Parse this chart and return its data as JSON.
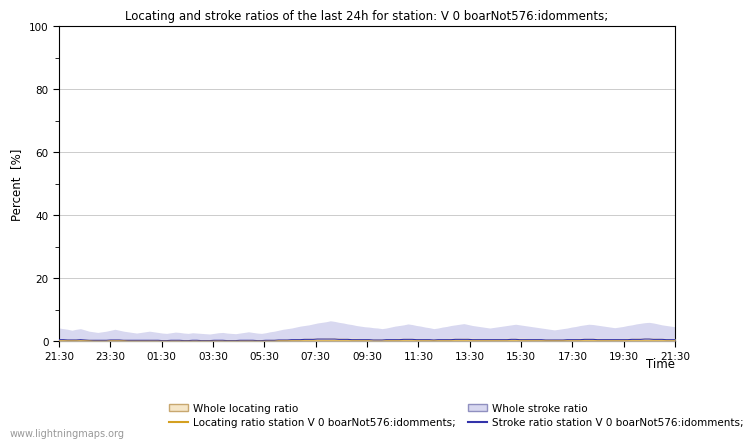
{
  "title": "Locating and stroke ratios of the last 24h for station: V 0 boarNot576:idomments;",
  "xlabel": "Time",
  "ylabel": "Percent  [%]",
  "xlim_labels": [
    "21:30",
    "23:30",
    "01:30",
    "03:30",
    "05:30",
    "07:30",
    "09:30",
    "11:30",
    "13:30",
    "15:30",
    "17:30",
    "19:30",
    "21:30"
  ],
  "yticks": [
    0,
    20,
    40,
    60,
    80,
    100
  ],
  "yminor_ticks": [
    10,
    30,
    50,
    70,
    90
  ],
  "ylim": [
    0,
    100
  ],
  "background_color": "#ffffff",
  "plot_bg_color": "#ffffff",
  "grid_color": "#cccccc",
  "watermark": "www.lightningmaps.org",
  "whole_locating_fill_color": "#f5e6c8",
  "whole_locating_line_color": "#c8a870",
  "whole_stroke_fill_color": "#d8d8f0",
  "whole_stroke_line_color": "#9090c0",
  "station_locating_line_color": "#d4a020",
  "station_stroke_line_color": "#3333aa",
  "legend_labels": [
    "Whole locating ratio",
    "Locating ratio station V 0 boarNot576:idomments;",
    "Whole stroke ratio",
    "Stroke ratio station V 0 boarNot576:idomments;"
  ],
  "n_points": 144,
  "whole_stroke_values": [
    4.2,
    4.0,
    3.8,
    3.5,
    3.8,
    4.0,
    3.6,
    3.2,
    3.0,
    2.8,
    3.0,
    3.2,
    3.5,
    3.8,
    3.5,
    3.2,
    3.0,
    2.8,
    2.6,
    2.8,
    3.0,
    3.2,
    3.0,
    2.8,
    2.6,
    2.5,
    2.7,
    2.9,
    2.8,
    2.6,
    2.5,
    2.7,
    2.6,
    2.5,
    2.4,
    2.3,
    2.5,
    2.7,
    2.8,
    2.6,
    2.5,
    2.4,
    2.6,
    2.8,
    3.0,
    2.8,
    2.6,
    2.5,
    2.7,
    3.0,
    3.2,
    3.5,
    3.8,
    4.0,
    4.2,
    4.5,
    4.8,
    5.0,
    5.2,
    5.5,
    5.8,
    6.0,
    6.2,
    6.5,
    6.3,
    6.0,
    5.8,
    5.5,
    5.3,
    5.0,
    4.8,
    4.6,
    4.5,
    4.3,
    4.2,
    4.0,
    4.2,
    4.5,
    4.8,
    5.0,
    5.2,
    5.5,
    5.3,
    5.0,
    4.8,
    4.5,
    4.3,
    4.0,
    4.2,
    4.5,
    4.7,
    5.0,
    5.2,
    5.4,
    5.6,
    5.3,
    5.0,
    4.8,
    4.6,
    4.4,
    4.2,
    4.4,
    4.6,
    4.8,
    5.0,
    5.2,
    5.4,
    5.2,
    5.0,
    4.8,
    4.6,
    4.4,
    4.2,
    4.0,
    3.8,
    3.6,
    3.8,
    4.0,
    4.2,
    4.5,
    4.7,
    5.0,
    5.2,
    5.4,
    5.3,
    5.1,
    4.9,
    4.7,
    4.5,
    4.3,
    4.5,
    4.7,
    5.0,
    5.2,
    5.5,
    5.7,
    5.9,
    6.0,
    5.8,
    5.5,
    5.2,
    5.0,
    4.8,
    4.6
  ],
  "station_stroke_values": [
    0.5,
    0.5,
    0.4,
    0.4,
    0.4,
    0.5,
    0.4,
    0.3,
    0.3,
    0.3,
    0.3,
    0.3,
    0.4,
    0.4,
    0.4,
    0.3,
    0.3,
    0.3,
    0.3,
    0.3,
    0.3,
    0.3,
    0.3,
    0.3,
    0.2,
    0.2,
    0.3,
    0.3,
    0.3,
    0.2,
    0.2,
    0.3,
    0.3,
    0.2,
    0.2,
    0.2,
    0.3,
    0.3,
    0.3,
    0.2,
    0.2,
    0.2,
    0.3,
    0.3,
    0.3,
    0.3,
    0.2,
    0.2,
    0.3,
    0.3,
    0.3,
    0.4,
    0.4,
    0.4,
    0.5,
    0.5,
    0.5,
    0.6,
    0.6,
    0.6,
    0.7,
    0.7,
    0.7,
    0.7,
    0.7,
    0.6,
    0.6,
    0.6,
    0.5,
    0.5,
    0.5,
    0.5,
    0.5,
    0.4,
    0.4,
    0.4,
    0.5,
    0.5,
    0.5,
    0.5,
    0.6,
    0.6,
    0.6,
    0.5,
    0.5,
    0.5,
    0.5,
    0.4,
    0.5,
    0.5,
    0.5,
    0.5,
    0.6,
    0.6,
    0.6,
    0.6,
    0.5,
    0.5,
    0.5,
    0.5,
    0.5,
    0.5,
    0.5,
    0.5,
    0.5,
    0.6,
    0.6,
    0.5,
    0.5,
    0.5,
    0.5,
    0.5,
    0.5,
    0.4,
    0.4,
    0.4,
    0.4,
    0.4,
    0.5,
    0.5,
    0.5,
    0.5,
    0.6,
    0.6,
    0.6,
    0.5,
    0.5,
    0.5,
    0.5,
    0.5,
    0.5,
    0.5,
    0.5,
    0.6,
    0.6,
    0.6,
    0.7,
    0.7,
    0.6,
    0.6,
    0.6,
    0.5,
    0.5,
    0.5
  ],
  "whole_locating_values": [
    0.8,
    0.8,
    0.7,
    0.7,
    0.8,
    0.8,
    0.7,
    0.6,
    0.6,
    0.5,
    0.5,
    0.6,
    0.7,
    0.7,
    0.7,
    0.6,
    0.6,
    0.5,
    0.5,
    0.5,
    0.5,
    0.6,
    0.6,
    0.5,
    0.5,
    0.5,
    0.5,
    0.6,
    0.5,
    0.5,
    0.5,
    0.5,
    0.5,
    0.5,
    0.4,
    0.4,
    0.5,
    0.5,
    0.5,
    0.5,
    0.5,
    0.4,
    0.5,
    0.5,
    0.6,
    0.5,
    0.5,
    0.5,
    0.5,
    0.6,
    0.6,
    0.7,
    0.7,
    0.8,
    0.8,
    0.9,
    0.9,
    1.0,
    1.0,
    1.1,
    1.1,
    1.1,
    1.2,
    1.2,
    1.2,
    1.1,
    1.1,
    1.0,
    1.0,
    1.0,
    0.9,
    0.9,
    0.9,
    0.8,
    0.8,
    0.8,
    0.8,
    0.9,
    0.9,
    1.0,
    1.0,
    1.0,
    1.0,
    0.9,
    0.9,
    0.9,
    0.8,
    0.8,
    0.8,
    0.9,
    0.9,
    1.0,
    1.0,
    1.0,
    1.1,
    1.0,
    1.0,
    0.9,
    0.9,
    0.9,
    0.9,
    0.9,
    0.9,
    0.9,
    1.0,
    1.0,
    1.0,
    1.0,
    1.0,
    0.9,
    0.9,
    0.9,
    0.8,
    0.8,
    0.8,
    0.7,
    0.7,
    0.8,
    0.8,
    0.9,
    0.9,
    1.0,
    1.0,
    1.0,
    1.0,
    1.0,
    0.9,
    0.9,
    0.9,
    0.8,
    0.9,
    0.9,
    1.0,
    1.0,
    1.1,
    1.1,
    1.1,
    1.1,
    1.1,
    1.0,
    1.0,
    0.9,
    0.9,
    0.9
  ],
  "station_locating_values": [
    0.1,
    0.1,
    0.1,
    0.1,
    0.1,
    0.1,
    0.1,
    0.1,
    0.0,
    0.0,
    0.0,
    0.0,
    0.1,
    0.1,
    0.1,
    0.1,
    0.0,
    0.0,
    0.0,
    0.0,
    0.0,
    0.0,
    0.0,
    0.0,
    0.0,
    0.0,
    0.0,
    0.0,
    0.0,
    0.0,
    0.0,
    0.0,
    0.0,
    0.0,
    0.0,
    0.0,
    0.0,
    0.0,
    0.0,
    0.0,
    0.0,
    0.0,
    0.0,
    0.0,
    0.0,
    0.0,
    0.0,
    0.0,
    0.0,
    0.0,
    0.0,
    0.1,
    0.1,
    0.1,
    0.1,
    0.1,
    0.1,
    0.1,
    0.1,
    0.1,
    0.1,
    0.1,
    0.1,
    0.1,
    0.1,
    0.1,
    0.1,
    0.1,
    0.1,
    0.1,
    0.1,
    0.1,
    0.1,
    0.0,
    0.0,
    0.0,
    0.1,
    0.1,
    0.1,
    0.1,
    0.1,
    0.1,
    0.1,
    0.1,
    0.1,
    0.1,
    0.1,
    0.1,
    0.1,
    0.1,
    0.1,
    0.1,
    0.1,
    0.1,
    0.1,
    0.1,
    0.1,
    0.1,
    0.1,
    0.1,
    0.1,
    0.1,
    0.1,
    0.1,
    0.1,
    0.1,
    0.1,
    0.1,
    0.1,
    0.1,
    0.1,
    0.1,
    0.1,
    0.1,
    0.1,
    0.1,
    0.1,
    0.1,
    0.1,
    0.1,
    0.1,
    0.1,
    0.1,
    0.1,
    0.1,
    0.1,
    0.1,
    0.1,
    0.1,
    0.1,
    0.1,
    0.1,
    0.1,
    0.1,
    0.1,
    0.1,
    0.1,
    0.1,
    0.1,
    0.1,
    0.1,
    0.1,
    0.1,
    0.1
  ]
}
